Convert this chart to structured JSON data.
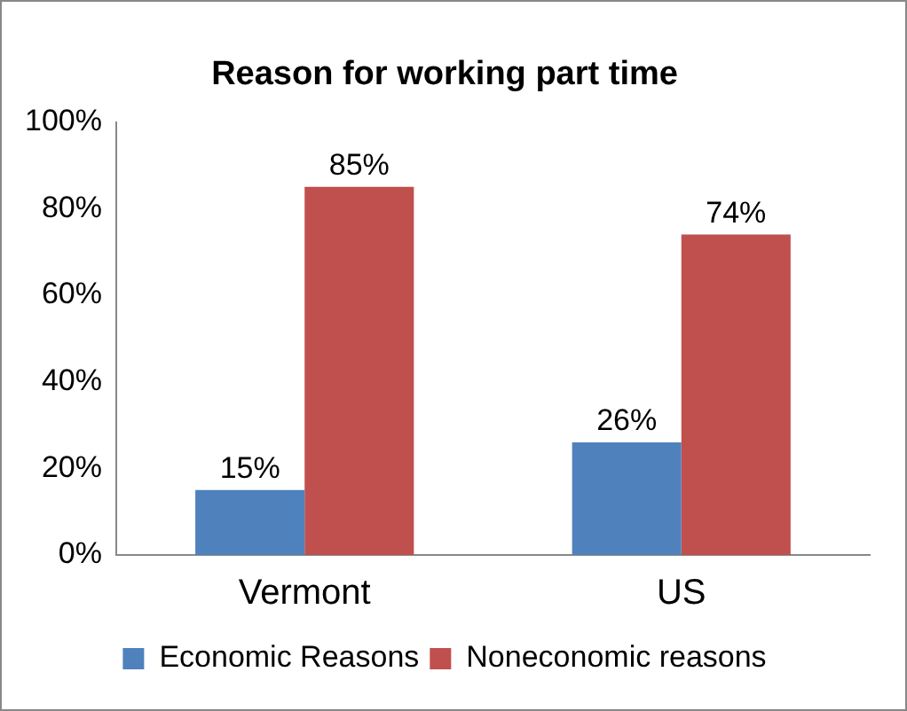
{
  "chart_data": {
    "type": "bar",
    "title": "Reason for working part time",
    "categories": [
      "Vermont",
      "US"
    ],
    "series": [
      {
        "name": "Economic Reasons",
        "color": "#4f81bd",
        "values": [
          15,
          26
        ],
        "value_labels": [
          "15%",
          "26%"
        ]
      },
      {
        "name": "Noneconomic reasons",
        "color": "#c0504d",
        "values": [
          85,
          74
        ],
        "value_labels": [
          "85%",
          "74%"
        ]
      }
    ],
    "ylim": [
      0,
      100
    ],
    "yticks": [
      {
        "value": 0,
        "label": "0%"
      },
      {
        "value": 20,
        "label": "20%"
      },
      {
        "value": 40,
        "label": "40%"
      },
      {
        "value": 60,
        "label": "60%"
      },
      {
        "value": 80,
        "label": "80%"
      },
      {
        "value": 100,
        "label": "100%"
      }
    ],
    "grid": false,
    "legend": "bottom"
  }
}
